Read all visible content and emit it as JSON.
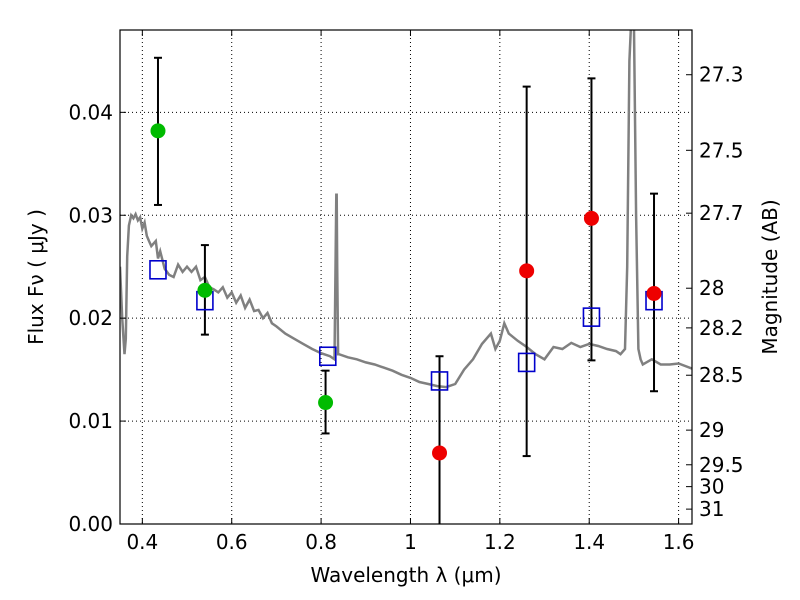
{
  "chart_data": {
    "type": "scatter",
    "xlabel": "Wavelength  λ (μm)",
    "ylabel": "Flux  Fν  ( μJy )",
    "y2label": "Magnitude (AB)",
    "xlim": [
      0.35,
      1.63
    ],
    "ylim": [
      0.0,
      0.048
    ],
    "grid": true,
    "x_ticks": [
      {
        "value": 0.4,
        "label": "0.4"
      },
      {
        "value": 0.6,
        "label": "0.6"
      },
      {
        "value": 0.8,
        "label": "0.8"
      },
      {
        "value": 1.0,
        "label": "1"
      },
      {
        "value": 1.2,
        "label": "1.2"
      },
      {
        "value": 1.4,
        "label": "1.4"
      },
      {
        "value": 1.6,
        "label": "1.6"
      }
    ],
    "y_ticks": [
      {
        "value": 0.0,
        "label": "0.00"
      },
      {
        "value": 0.01,
        "label": "0.01"
      },
      {
        "value": 0.02,
        "label": "0.02"
      },
      {
        "value": 0.03,
        "label": "0.03"
      },
      {
        "value": 0.04,
        "label": "0.04"
      }
    ],
    "y2_ticks": [
      {
        "value": 27.3,
        "label": "27.3"
      },
      {
        "value": 27.5,
        "label": "27.5"
      },
      {
        "value": 27.7,
        "label": "27.7"
      },
      {
        "value": 28,
        "label": "28"
      },
      {
        "value": 28.2,
        "label": "28.2"
      },
      {
        "value": 28.5,
        "label": "28.5"
      },
      {
        "value": 29,
        "label": "29"
      },
      {
        "value": 29.5,
        "label": "29.5"
      },
      {
        "value": 30,
        "label": "30"
      },
      {
        "value": 31,
        "label": "31"
      }
    ],
    "sed_model": {
      "color": "#808080",
      "x": [
        0.35,
        0.355,
        0.36,
        0.363,
        0.366,
        0.37,
        0.375,
        0.38,
        0.385,
        0.39,
        0.395,
        0.4,
        0.405,
        0.41,
        0.415,
        0.42,
        0.43,
        0.435,
        0.44,
        0.45,
        0.46,
        0.47,
        0.48,
        0.49,
        0.5,
        0.51,
        0.52,
        0.53,
        0.54,
        0.55,
        0.56,
        0.57,
        0.58,
        0.59,
        0.6,
        0.61,
        0.62,
        0.63,
        0.64,
        0.65,
        0.66,
        0.67,
        0.68,
        0.69,
        0.7,
        0.72,
        0.74,
        0.76,
        0.78,
        0.8,
        0.82,
        0.83,
        0.834,
        0.835,
        0.836,
        0.838,
        0.84,
        0.86,
        0.88,
        0.9,
        0.92,
        0.94,
        0.96,
        0.98,
        1.0,
        1.02,
        1.04,
        1.06,
        1.08,
        1.1,
        1.12,
        1.14,
        1.16,
        1.18,
        1.19,
        1.2,
        1.21,
        1.22,
        1.24,
        1.26,
        1.28,
        1.3,
        1.32,
        1.34,
        1.36,
        1.38,
        1.4,
        1.42,
        1.44,
        1.46,
        1.47,
        1.48,
        1.485,
        1.49,
        1.495,
        1.5,
        1.505,
        1.51,
        1.515,
        1.52,
        1.54,
        1.56,
        1.58,
        1.6,
        1.63
      ],
      "y": [
        0.025,
        0.02,
        0.0165,
        0.018,
        0.026,
        0.029,
        0.03,
        0.0297,
        0.0301,
        0.0295,
        0.0298,
        0.0287,
        0.0293,
        0.028,
        0.0275,
        0.027,
        0.0275,
        0.0258,
        0.0265,
        0.0248,
        0.0242,
        0.024,
        0.0252,
        0.0245,
        0.025,
        0.0245,
        0.025,
        0.0237,
        0.024,
        0.023,
        0.0228,
        0.0225,
        0.023,
        0.022,
        0.0225,
        0.0215,
        0.0222,
        0.021,
        0.0218,
        0.0207,
        0.0208,
        0.02,
        0.0205,
        0.0195,
        0.0192,
        0.0185,
        0.018,
        0.0175,
        0.017,
        0.0166,
        0.0163,
        0.016,
        0.032,
        0.032,
        0.025,
        0.0165,
        0.0165,
        0.0162,
        0.016,
        0.0157,
        0.0155,
        0.0152,
        0.0149,
        0.0145,
        0.0142,
        0.0138,
        0.0136,
        0.0134,
        0.0133,
        0.0136,
        0.015,
        0.016,
        0.0175,
        0.0185,
        0.017,
        0.0178,
        0.0195,
        0.0185,
        0.0178,
        0.0172,
        0.0165,
        0.016,
        0.0172,
        0.017,
        0.0176,
        0.0172,
        0.0175,
        0.0173,
        0.017,
        0.0168,
        0.0165,
        0.017,
        0.025,
        0.045,
        0.05,
        0.049,
        0.03,
        0.017,
        0.016,
        0.0155,
        0.016,
        0.0155,
        0.0155,
        0.0156,
        0.0151
      ]
    },
    "model_photometry": {
      "marker": "square",
      "color": "#0000cc",
      "x": [
        0.435,
        0.54,
        0.815,
        1.065,
        1.26,
        1.405,
        1.545
      ],
      "y": [
        0.0247,
        0.0217,
        0.0163,
        0.0139,
        0.0157,
        0.0201,
        0.0217
      ]
    },
    "detections": {
      "color": "#00bb00",
      "x": [
        0.435,
        0.54,
        0.81
      ],
      "y": [
        0.0382,
        0.0227,
        0.0118
      ],
      "err_low": [
        0.031,
        0.0184,
        0.0088
      ],
      "err_high": [
        0.0453,
        0.0271,
        0.0149
      ]
    },
    "upper_limits": {
      "color": "#ee0000",
      "x": [
        1.065,
        1.26,
        1.405,
        1.545
      ],
      "y": [
        0.0069,
        0.0246,
        0.0297,
        0.0224
      ],
      "err_low": [
        0.0,
        0.0066,
        0.0159,
        0.0129
      ],
      "err_high": [
        0.0163,
        0.0425,
        0.0433,
        0.0321
      ]
    }
  }
}
